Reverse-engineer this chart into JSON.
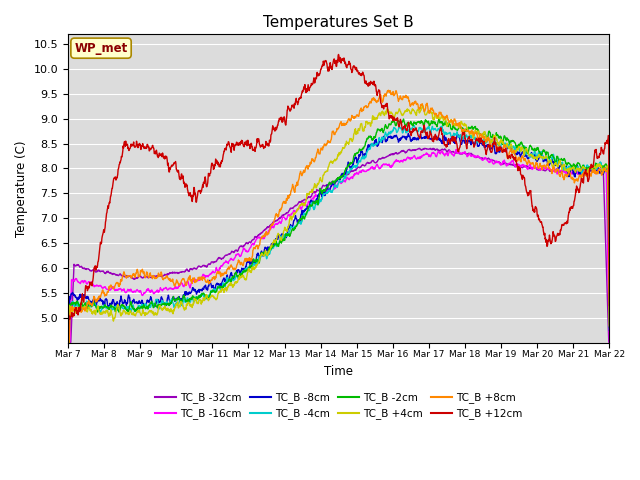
{
  "title": "Temperatures Set B",
  "xlabel": "Time",
  "ylabel": "Temperature (C)",
  "ylim": [
    4.5,
    10.7
  ],
  "yticks": [
    5.0,
    5.5,
    6.0,
    6.5,
    7.0,
    7.5,
    8.0,
    8.5,
    9.0,
    9.5,
    10.0,
    10.5
  ],
  "x_labels": [
    "Mar 7",
    "Mar 8",
    "Mar 9",
    "Mar 10",
    "Mar 11",
    "Mar 12",
    "Mar 13",
    "Mar 14",
    "Mar 15",
    "Mar 16",
    "Mar 17",
    "Mar 18",
    "Mar 19",
    "Mar 20",
    "Mar 21",
    "Mar 22"
  ],
  "background_color": "#dcdcdc",
  "wp_met_label": "WP_met",
  "wp_met_color": "#8b0000",
  "series": [
    {
      "label": "TC_B -32cm",
      "color": "#9900bb"
    },
    {
      "label": "TC_B -16cm",
      "color": "#ff00ff"
    },
    {
      "label": "TC_B -8cm",
      "color": "#0000cc"
    },
    {
      "label": "TC_B -4cm",
      "color": "#00cccc"
    },
    {
      "label": "TC_B -2cm",
      "color": "#00bb00"
    },
    {
      "label": "TC_B +4cm",
      "color": "#cccc00"
    },
    {
      "label": "TC_B +8cm",
      "color": "#ff8800"
    },
    {
      "label": "TC_B +12cm",
      "color": "#cc0000"
    }
  ]
}
